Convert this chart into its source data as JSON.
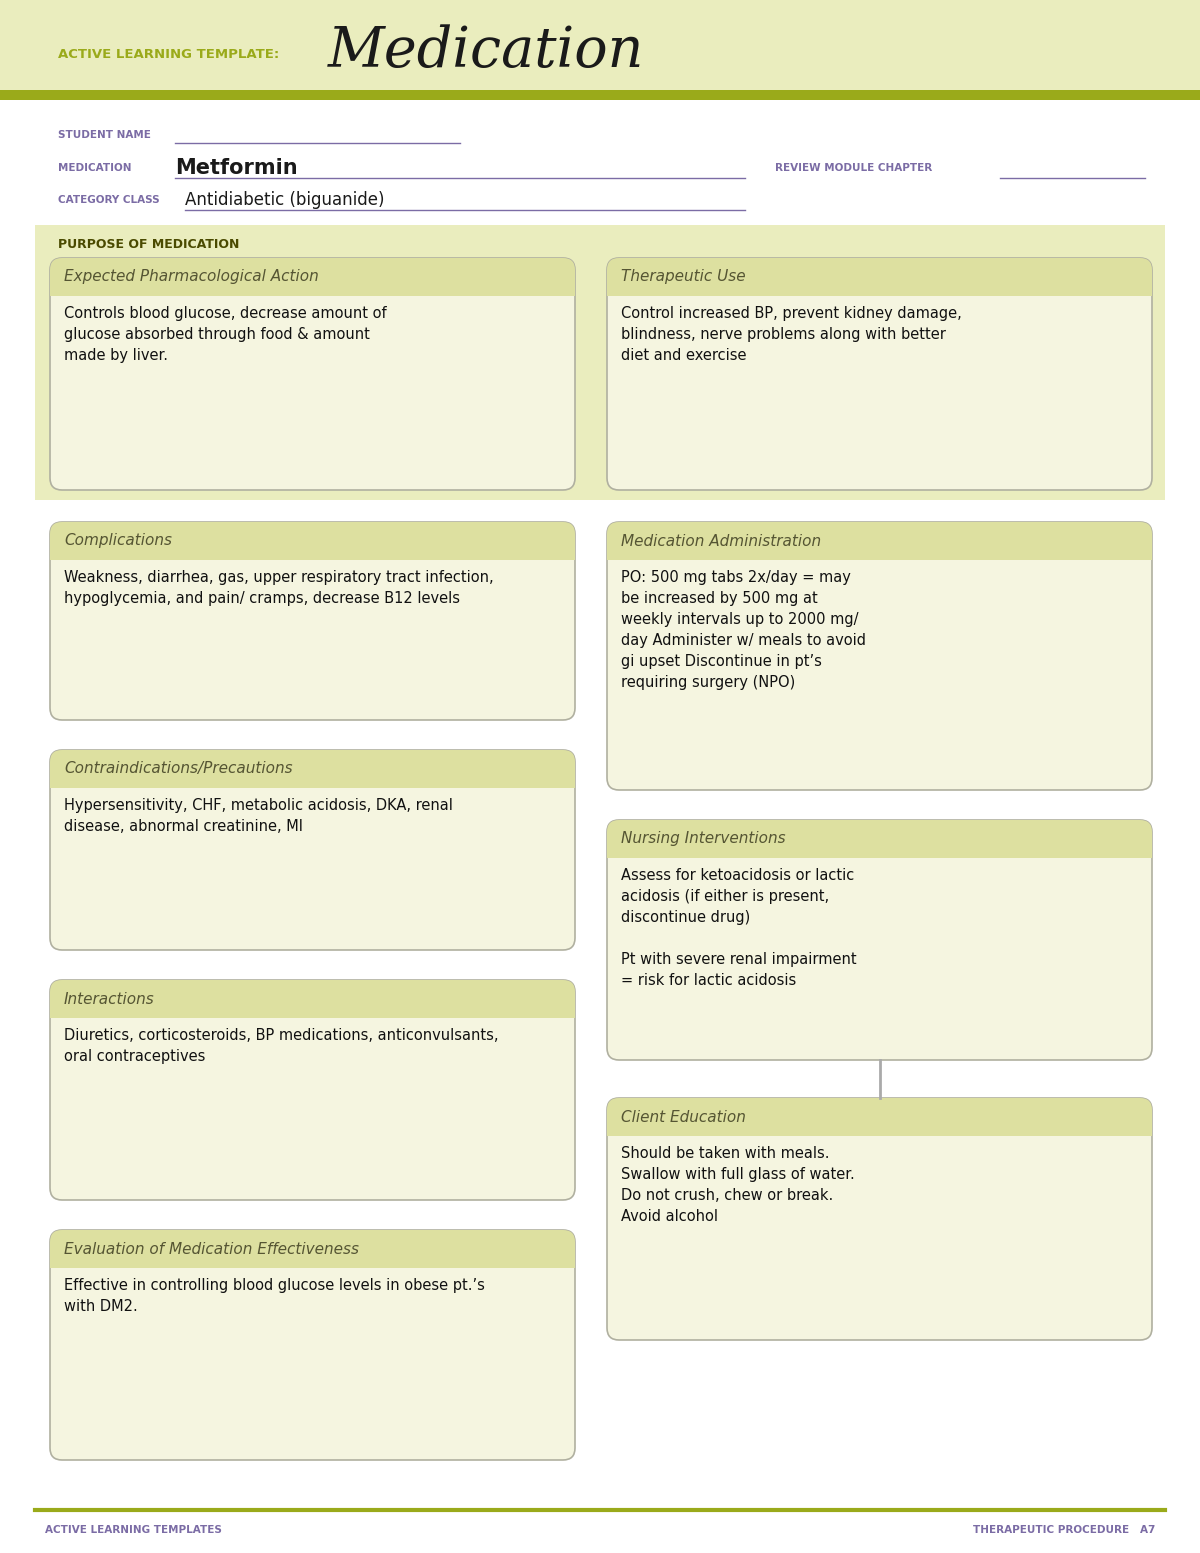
{
  "white": "#ffffff",
  "olive_green": "#9aaa1a",
  "purple": "#7b6ca5",
  "box_bg": "#f5f5e0",
  "hdr_bg": "#dde0a0",
  "box_border": "#b0b0a0",
  "purpose_band_bg": "#eaedbe",
  "title_label": "ACTIVE LEARNING TEMPLATE:",
  "title_main": "Medication",
  "student_name_label": "STUDENT NAME",
  "medication_label": "MEDICATION",
  "medication_value": "Metformin",
  "review_label": "REVIEW MODULE CHAPTER",
  "category_label": "CATEGORY CLASS",
  "category_value": "Antidiabetic (biguanide)",
  "purpose_header": "PURPOSE OF MEDICATION",
  "box1_title": "Expected Pharmacological Action",
  "box1_body": "Controls blood glucose, decrease amount of\nglucose absorbed through food & amount\nmade by liver.",
  "box2_title": "Therapeutic Use",
  "box2_body": "Control increased BP, prevent kidney damage,\nblindness, nerve problems along with better\ndiet and exercise",
  "box3_title": "Complications",
  "box3_body": "Weakness, diarrhea, gas, upper respiratory tract infection,\nhypoglycemia, and pain/ cramps, decrease B12 levels",
  "box4_title": "Medication Administration",
  "box4_body": "PO: 500 mg tabs 2x/day = may\nbe increased by 500 mg at\nweekly intervals up to 2000 mg/\nday Administer w/ meals to avoid\ngi upset Discontinue in pt’s\nrequiring surgery (NPO)",
  "box5_title": "Contraindications/Precautions",
  "box5_body": "Hypersensitivity, CHF, metabolic acidosis, DKA, renal\ndisease, abnormal creatinine, MI",
  "box6_title": "Nursing Interventions",
  "box6_body": "Assess for ketoacidosis or lactic\nacidosis (if either is present,\ndiscontinue drug)\n\nPt with severe renal impairment\n= risk for lactic acidosis",
  "box7_title": "Interactions",
  "box7_body": "Diuretics, corticosteroids, BP medications, anticonvulsants,\noral contraceptives",
  "box8_title": "Client Education",
  "box8_body": "Should be taken with meals.\nSwallow with full glass of water.\nDo not crush, chew or break.\nAvoid alcohol",
  "box9_title": "Evaluation of Medication Effectiveness",
  "box9_body": "Effective in controlling blood glucose levels in obese pt.’s\nwith DM2.",
  "footer_left": "ACTIVE LEARNING TEMPLATES",
  "footer_right": "THERAPEUTIC PROCEDURE   A7"
}
